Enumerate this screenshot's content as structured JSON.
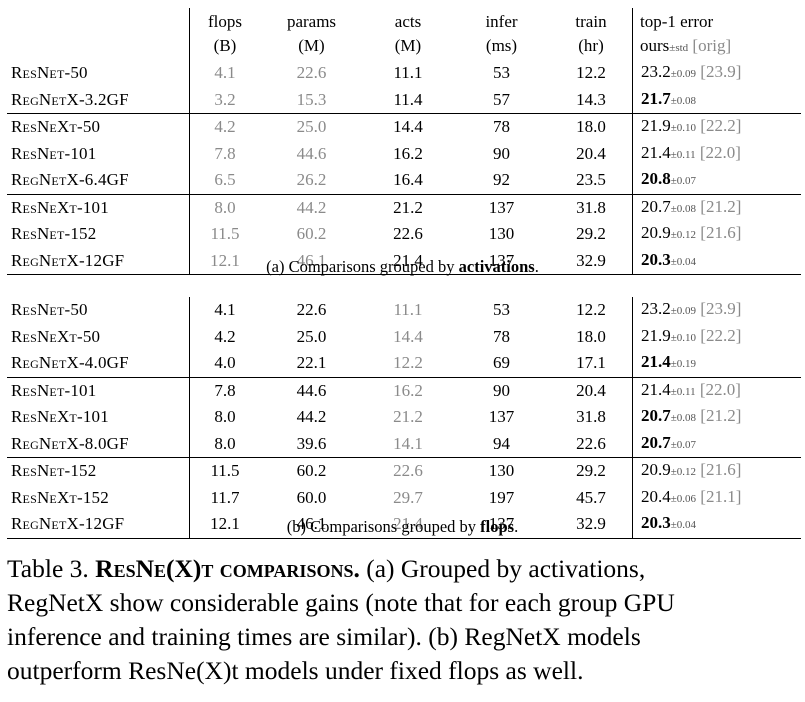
{
  "header": {
    "flops": [
      "flops",
      "(B)"
    ],
    "params": [
      "params",
      "(M)"
    ],
    "acts": [
      "acts",
      "(M)"
    ],
    "infer": [
      "infer",
      "(ms)"
    ],
    "train": [
      "train",
      "(hr)"
    ],
    "error": [
      "top-1 error",
      "ours",
      "±std",
      "[orig]"
    ]
  },
  "table_a": {
    "caption_prefix": "(a) Comparisons grouped by ",
    "caption_bold": "activations",
    "caption_suffix": ".",
    "groups": [
      [
        {
          "model": "ResNet-50",
          "flops": "4.1",
          "params": "22.6",
          "acts": "11.1",
          "infer": "53",
          "train": "12.2",
          "err": "23.2",
          "std": "±0.09",
          "orig": "[23.9]",
          "best": false
        },
        {
          "model": "RegNetX-3.2GF",
          "flops": "3.2",
          "params": "15.3",
          "acts": "11.4",
          "infer": "57",
          "train": "14.3",
          "err": "21.7",
          "std": "±0.08",
          "orig": "",
          "best": true
        }
      ],
      [
        {
          "model": "ResNeXt-50",
          "flops": "4.2",
          "params": "25.0",
          "acts": "14.4",
          "infer": "78",
          "train": "18.0",
          "err": "21.9",
          "std": "±0.10",
          "orig": "[22.2]",
          "best": false
        },
        {
          "model": "ResNet-101",
          "flops": "7.8",
          "params": "44.6",
          "acts": "16.2",
          "infer": "90",
          "train": "20.4",
          "err": "21.4",
          "std": "±0.11",
          "orig": "[22.0]",
          "best": false
        },
        {
          "model": "RegNetX-6.4GF",
          "flops": "6.5",
          "params": "26.2",
          "acts": "16.4",
          "infer": "92",
          "train": "23.5",
          "err": "20.8",
          "std": "±0.07",
          "orig": "",
          "best": true
        }
      ],
      [
        {
          "model": "ResNeXt-101",
          "flops": "8.0",
          "params": "44.2",
          "acts": "21.2",
          "infer": "137",
          "train": "31.8",
          "err": "20.7",
          "std": "±0.08",
          "orig": "[21.2]",
          "best": false
        },
        {
          "model": "ResNet-152",
          "flops": "11.5",
          "params": "60.2",
          "acts": "22.6",
          "infer": "130",
          "train": "29.2",
          "err": "20.9",
          "std": "±0.12",
          "orig": "[21.6]",
          "best": false
        },
        {
          "model": "RegNetX-12GF",
          "flops": "12.1",
          "params": "46.1",
          "acts": "21.4",
          "infer": "137",
          "train": "32.9",
          "err": "20.3",
          "std": "±0.04",
          "orig": "",
          "best": true
        }
      ]
    ]
  },
  "table_b": {
    "caption_prefix": "(b) Comparisons grouped by ",
    "caption_bold": "flops",
    "caption_suffix": ".",
    "groups": [
      [
        {
          "model": "ResNet-50",
          "flops": "4.1",
          "params": "22.6",
          "acts": "11.1",
          "infer": "53",
          "train": "12.2",
          "err": "23.2",
          "std": "±0.09",
          "orig": "[23.9]",
          "best": false
        },
        {
          "model": "ResNeXt-50",
          "flops": "4.2",
          "params": "25.0",
          "acts": "14.4",
          "infer": "78",
          "train": "18.0",
          "err": "21.9",
          "std": "±0.10",
          "orig": "[22.2]",
          "best": false
        },
        {
          "model": "RegNetX-4.0GF",
          "flops": "4.0",
          "params": "22.1",
          "acts": "12.2",
          "infer": "69",
          "train": "17.1",
          "err": "21.4",
          "std": "±0.19",
          "orig": "",
          "best": true
        }
      ],
      [
        {
          "model": "ResNet-101",
          "flops": "7.8",
          "params": "44.6",
          "acts": "16.2",
          "infer": "90",
          "train": "20.4",
          "err": "21.4",
          "std": "±0.11",
          "orig": "[22.0]",
          "best": false
        },
        {
          "model": "ResNeXt-101",
          "flops": "8.0",
          "params": "44.2",
          "acts": "21.2",
          "infer": "137",
          "train": "31.8",
          "err": "20.7",
          "std": "±0.08",
          "orig": "[21.2]",
          "best": true
        },
        {
          "model": "RegNetX-8.0GF",
          "flops": "8.0",
          "params": "39.6",
          "acts": "14.1",
          "infer": "94",
          "train": "22.6",
          "err": "20.7",
          "std": "±0.07",
          "orig": "",
          "best": true
        }
      ],
      [
        {
          "model": "ResNet-152",
          "flops": "11.5",
          "params": "60.2",
          "acts": "22.6",
          "infer": "130",
          "train": "29.2",
          "err": "20.9",
          "std": "±0.12",
          "orig": "[21.6]",
          "best": false
        },
        {
          "model": "ResNeXt-152",
          "flops": "11.7",
          "params": "60.0",
          "acts": "29.7",
          "infer": "197",
          "train": "45.7",
          "err": "20.4",
          "std": "±0.06",
          "orig": "[21.1]",
          "best": false
        },
        {
          "model": "RegNetX-12GF",
          "flops": "12.1",
          "params": "46.1",
          "acts": "21.4",
          "infer": "137",
          "train": "32.9",
          "err": "20.3",
          "std": "±0.04",
          "orig": "",
          "best": true
        }
      ]
    ]
  },
  "caption": {
    "label": "Table 3.",
    "title": "ResNe(X)t comparisons.",
    "lines": [
      "(a) Grouped by activations,",
      "RegNetX show considerable gains (note that for each group GPU",
      "inference and training times are similar). (b) RegNetX models",
      "outperform ResNe(X)t models under fixed flops as well."
    ]
  },
  "colors": {
    "text": "#000000",
    "muted": "#8a8a8a"
  }
}
